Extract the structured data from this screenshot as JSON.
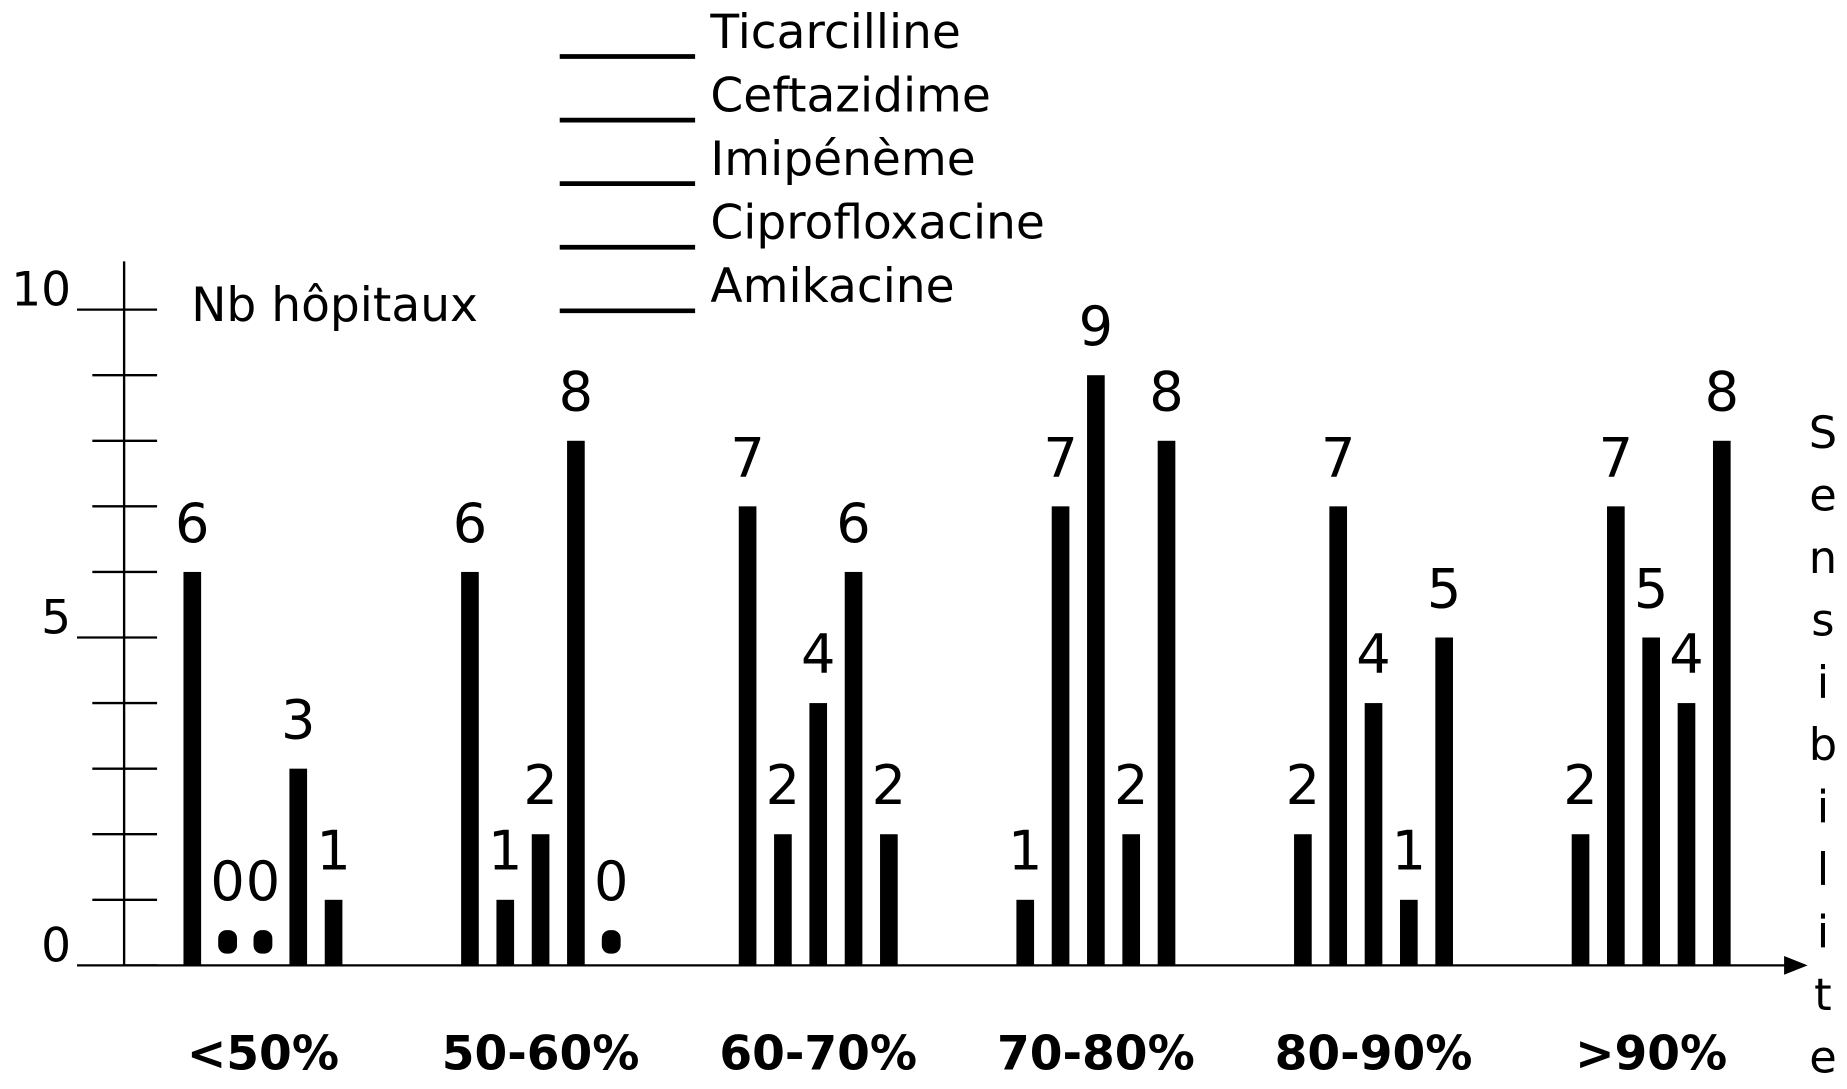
{
  "chart_data": {
    "type": "bar",
    "ylabel": "Nb hôpitaux",
    "xlabel": "Sensibilite",
    "categories": [
      "<50%",
      "50-60%",
      "60-70%",
      "70-80%",
      "80-90%",
      ">90%"
    ],
    "series": [
      {
        "name": "Ticarcilline",
        "color": "#000000",
        "values": [
          6,
          6,
          7,
          1,
          2,
          2
        ]
      },
      {
        "name": "Ceftazidime",
        "color": "#000000",
        "values": [
          0,
          1,
          2,
          7,
          7,
          7
        ]
      },
      {
        "name": "Imipénème",
        "color": "#000000",
        "values": [
          0,
          2,
          4,
          9,
          4,
          5
        ]
      },
      {
        "name": "Ciprofloxacine",
        "color": "#000000",
        "values": [
          3,
          8,
          6,
          2,
          1,
          4
        ]
      },
      {
        "name": "Amikacine",
        "color": "#000000",
        "values": [
          1,
          0,
          2,
          8,
          5,
          8
        ]
      }
    ],
    "ylim": [
      0,
      10
    ],
    "yticks": [
      0,
      5,
      10
    ],
    "minor_yticks": [
      1,
      2,
      3,
      4,
      6,
      7,
      8,
      9
    ]
  }
}
